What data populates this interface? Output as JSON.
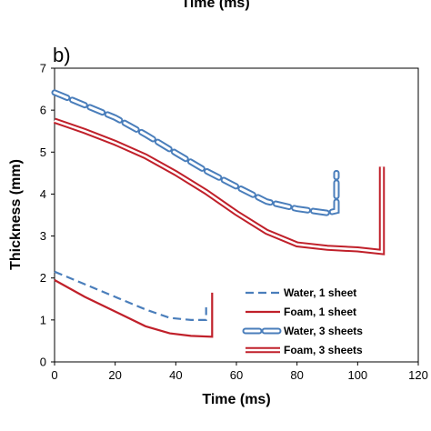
{
  "top_cropped_label": "Time (ms)",
  "colors": {
    "water": "#4a7ebb",
    "foam": "#c0202a"
  },
  "chart_data": {
    "type": "line",
    "panel_label": "b)",
    "xlabel": "Time (ms)",
    "ylabel": "Thickness (mm)",
    "xlim": [
      0,
      120
    ],
    "ylim": [
      0,
      7
    ],
    "xticks": [
      "0",
      "20",
      "40",
      "60",
      "80",
      "100",
      "120"
    ],
    "yticks": [
      "0",
      "1",
      "2",
      "3",
      "4",
      "5",
      "6",
      "7"
    ],
    "grid": false,
    "legend_position": "bottom-right",
    "series": [
      {
        "name": "Water, 1 sheet",
        "style": "dashed",
        "color": "#4a7ebb",
        "points": [
          [
            0,
            2.15
          ],
          [
            10,
            1.85
          ],
          [
            20,
            1.55
          ],
          [
            30,
            1.25
          ],
          [
            38,
            1.05
          ],
          [
            45,
            1.0
          ],
          [
            50,
            1.0
          ],
          [
            50,
            1.3
          ]
        ]
      },
      {
        "name": "Foam, 1 sheet",
        "style": "solid",
        "color": "#c0202a",
        "points": [
          [
            0,
            1.95
          ],
          [
            10,
            1.55
          ],
          [
            20,
            1.2
          ],
          [
            30,
            0.85
          ],
          [
            38,
            0.68
          ],
          [
            45,
            0.62
          ],
          [
            52,
            0.6
          ],
          [
            52,
            1.65
          ]
        ]
      },
      {
        "name": "Water, 3 sheets",
        "style": "dashed-outline",
        "color": "#4a7ebb",
        "points": [
          [
            0,
            6.42
          ],
          [
            10,
            6.12
          ],
          [
            20,
            5.82
          ],
          [
            30,
            5.42
          ],
          [
            40,
            4.98
          ],
          [
            50,
            4.55
          ],
          [
            60,
            4.18
          ],
          [
            70,
            3.82
          ],
          [
            80,
            3.65
          ],
          [
            90,
            3.55
          ],
          [
            93,
            3.6
          ],
          [
            93,
            4.5
          ]
        ]
      },
      {
        "name": "Foam, 3 sheets",
        "style": "solid-outline",
        "color": "#c0202a",
        "points": [
          [
            0,
            5.75
          ],
          [
            10,
            5.5
          ],
          [
            20,
            5.22
          ],
          [
            30,
            4.9
          ],
          [
            40,
            4.5
          ],
          [
            50,
            4.05
          ],
          [
            60,
            3.55
          ],
          [
            70,
            3.1
          ],
          [
            80,
            2.8
          ],
          [
            90,
            2.72
          ],
          [
            100,
            2.68
          ],
          [
            108,
            2.62
          ],
          [
            108,
            4.65
          ]
        ]
      }
    ]
  }
}
